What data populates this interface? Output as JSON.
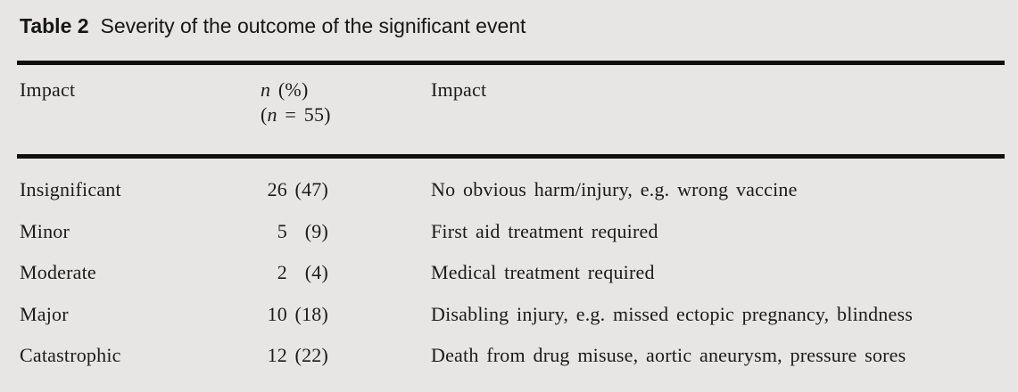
{
  "caption": {
    "label": "Table 2",
    "text": "Severity of the outcome of the significant event"
  },
  "header": {
    "col1": "Impact",
    "col2": {
      "line1_var": "n",
      "line1_rest": " (%)",
      "line2_pre": "(",
      "line2_var": "n",
      "line2_post": " = 55)"
    },
    "col3": "Impact"
  },
  "rows": [
    {
      "impact": "Insignificant",
      "n": "26",
      "pct": "(47)",
      "description": "No obvious harm/injury, e.g. wrong vaccine"
    },
    {
      "impact": "Minor",
      "n": "5",
      "pct": "(9)",
      "description": "First aid treatment required"
    },
    {
      "impact": "Moderate",
      "n": "2",
      "pct": "(4)",
      "description": "Medical treatment required"
    },
    {
      "impact": "Major",
      "n": "10",
      "pct": "(18)",
      "description": "Disabling injury, e.g. missed ectopic pregnancy, blindness"
    },
    {
      "impact": "Catastrophic",
      "n": "12",
      "pct": "(22)",
      "description": "Death from drug misuse, aortic aneurysm, pressure sores"
    }
  ],
  "colors": {
    "background": "#e7e6e4",
    "text": "#1b1b1b",
    "rule": "#0f0f0f"
  }
}
